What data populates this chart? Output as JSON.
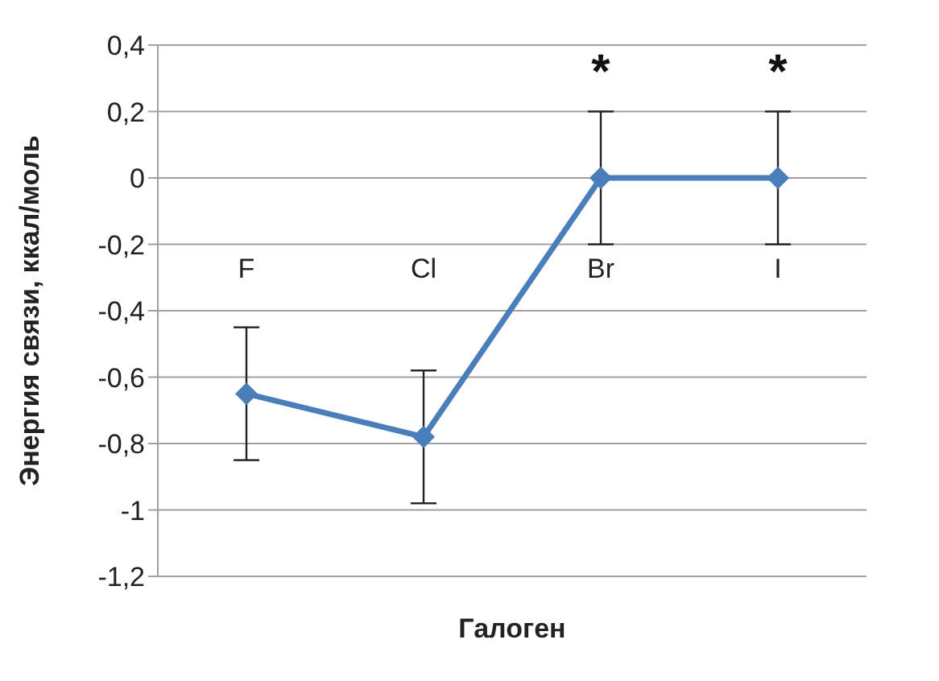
{
  "chart_data": {
    "type": "line",
    "xlabel": "Галоген",
    "ylabel": "Энергия связи, ккал/моль",
    "categories": [
      "F",
      "Cl",
      "Br",
      "I"
    ],
    "series": [
      {
        "color": "#4a7ebb",
        "values": [
          -0.65,
          -0.78,
          0,
          0
        ],
        "errors": [
          0.2,
          0.2,
          0.2,
          0.2
        ]
      }
    ],
    "ylim": [
      -1.2,
      0.4
    ],
    "yticks": [
      {
        "value": -1.2,
        "label": "-1,2"
      },
      {
        "value": -1,
        "label": "-1"
      },
      {
        "value": -0.8,
        "label": "-0,8"
      },
      {
        "value": -0.6,
        "label": "-0,6"
      },
      {
        "value": -0.4,
        "label": "-0,4"
      },
      {
        "value": -0.2,
        "label": "-0,2"
      },
      {
        "value": 0,
        "label": "0"
      },
      {
        "value": 0.2,
        "label": "0,2"
      },
      {
        "value": 0.4,
        "label": "0,4"
      }
    ],
    "grid": "y",
    "marker": "diamond",
    "line_style": "solid",
    "legend": false,
    "annotations": [
      {
        "text": "*",
        "x": "Br",
        "y": 0
      },
      {
        "text": "*",
        "x": "I",
        "y": 0
      }
    ]
  }
}
